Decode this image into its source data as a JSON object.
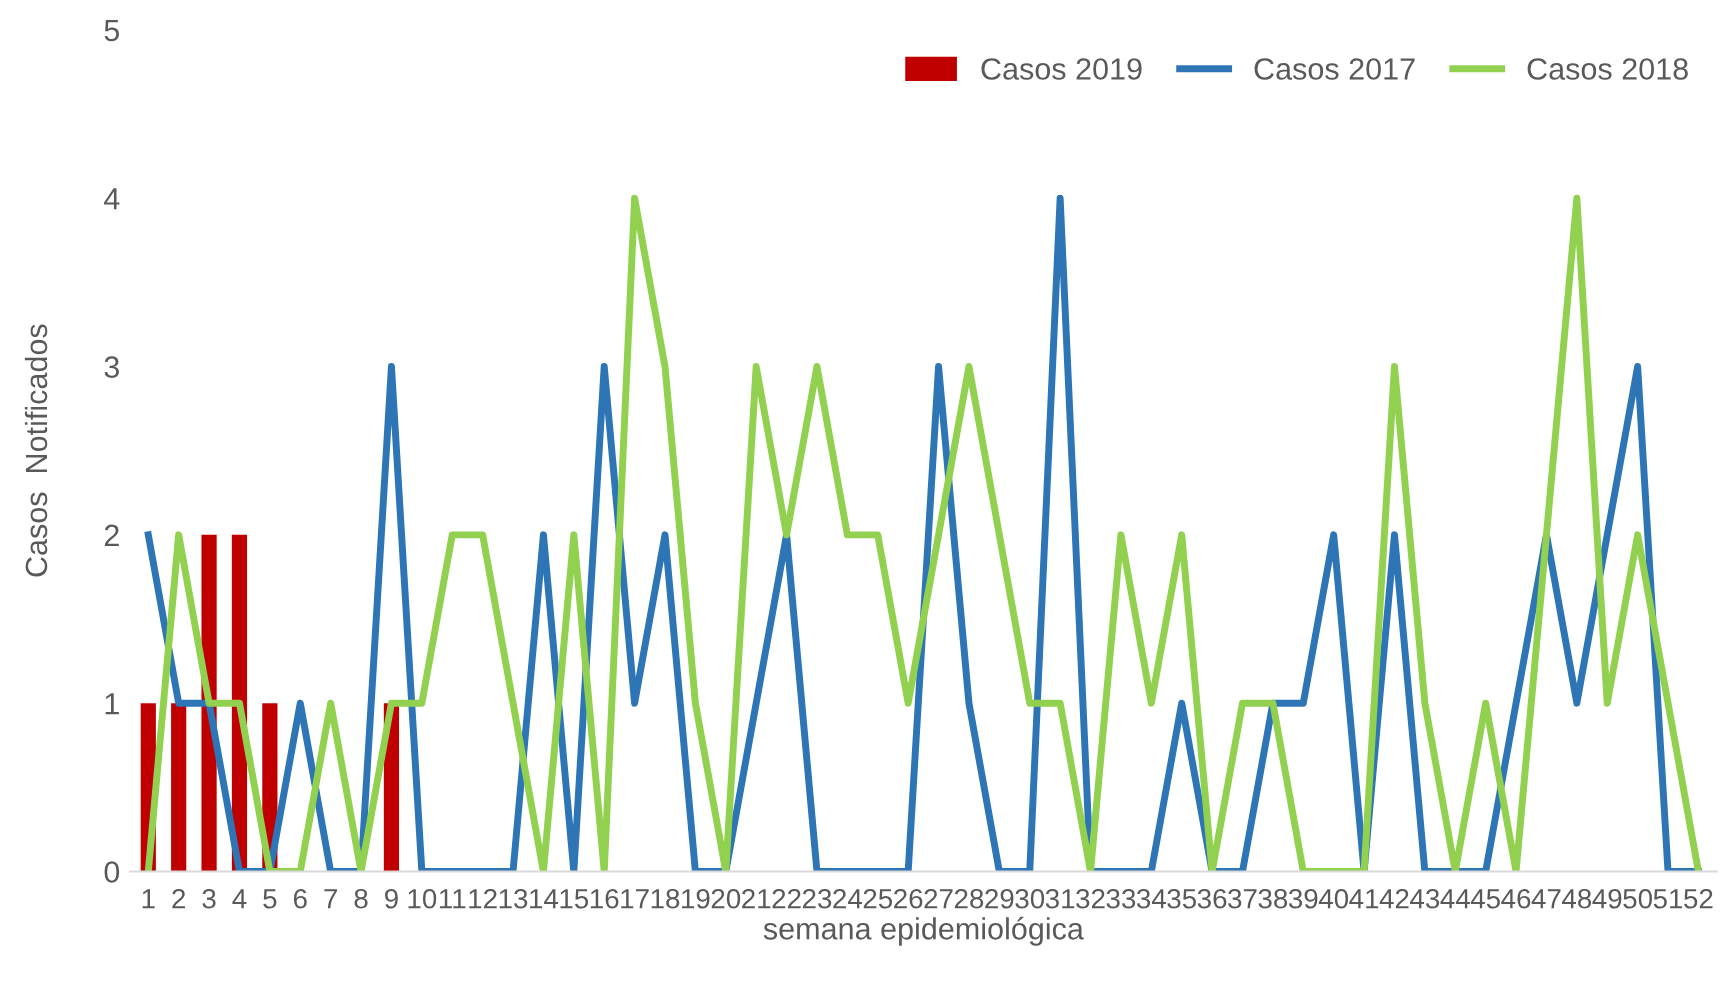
{
  "chart_data": {
    "type": "bar",
    "xlabel": "semana epidemiológica",
    "ylabel": "Casos  Notificados",
    "categories": [
      "1",
      "2",
      "3",
      "4",
      "5",
      "6",
      "7",
      "8",
      "9",
      "10",
      "11",
      "12",
      "13",
      "14",
      "15",
      "16",
      "17",
      "18",
      "19",
      "20",
      "21",
      "22",
      "23",
      "24",
      "25",
      "26",
      "27",
      "28",
      "29",
      "30",
      "31",
      "32",
      "33",
      "34",
      "35",
      "36",
      "37",
      "38",
      "39",
      "40",
      "41",
      "42",
      "43",
      "44",
      "45",
      "46",
      "47",
      "48",
      "49",
      "50",
      "51",
      "52"
    ],
    "series": [
      {
        "name": "Casos 2019",
        "color": "#c00000",
        "values": [
          1,
          1,
          2,
          2,
          1,
          0,
          0,
          0,
          1,
          null,
          null,
          null,
          null,
          null,
          null,
          null,
          null,
          null,
          null,
          null,
          null,
          null,
          null,
          null,
          null,
          null,
          null,
          null,
          null,
          null,
          null,
          null,
          null,
          null,
          null,
          null,
          null,
          null,
          null,
          null,
          null,
          null,
          null,
          null,
          null,
          null,
          null,
          null,
          null,
          null,
          null,
          null
        ]
      },
      {
        "name": "Casos 2017",
        "type": "line",
        "color": "#2e75b6",
        "values": [
          2,
          1,
          1,
          0,
          0,
          1,
          0,
          0,
          3,
          0,
          0,
          0,
          0,
          2,
          0,
          3,
          1,
          2,
          0,
          0,
          1,
          2,
          0,
          0,
          0,
          0,
          3,
          1,
          0,
          0,
          4,
          0,
          0,
          0,
          1,
          0,
          0,
          1,
          1,
          2,
          0,
          2,
          0,
          0,
          0,
          1,
          2,
          1,
          2,
          3,
          0,
          0
        ]
      },
      {
        "name": "Casos 2018",
        "type": "line",
        "color": "#92d050",
        "values": [
          0,
          2,
          1,
          1,
          0,
          0,
          1,
          0,
          1,
          1,
          2,
          2,
          1,
          0,
          2,
          0,
          4,
          3,
          1,
          0,
          3,
          2,
          3,
          2,
          2,
          1,
          2,
          3,
          2,
          1,
          1,
          0,
          2,
          1,
          2,
          0,
          1,
          1,
          0,
          0,
          0,
          3,
          1,
          0,
          1,
          0,
          2,
          4,
          1,
          2,
          1,
          0
        ]
      }
    ],
    "ylim": [
      0,
      5
    ],
    "yticks": [
      0,
      1,
      2,
      3,
      4,
      5
    ],
    "grid": false,
    "legend": "top right",
    "marker": "none",
    "line_style": "solid"
  }
}
